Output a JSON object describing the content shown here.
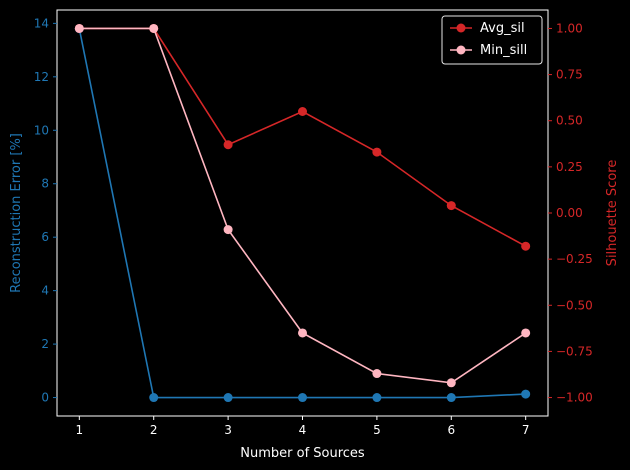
{
  "chart_data": {
    "type": "line",
    "x": [
      1,
      2,
      3,
      4,
      5,
      6,
      7
    ],
    "xlabel": "Number of Sources",
    "xticks": [
      "1",
      "2",
      "3",
      "4",
      "5",
      "6",
      "7"
    ],
    "xlim": [
      0.7,
      7.3
    ],
    "left_axis": {
      "label": "Reconstruction Error [%]",
      "color": "#1f77b4",
      "ylim": [
        -0.69,
        14.5
      ],
      "ticks": [
        0,
        2,
        4,
        6,
        8,
        10,
        12,
        14
      ]
    },
    "right_axis": {
      "label": "Silhouette Score",
      "color": "#d62728",
      "ylim": [
        -1.1,
        1.1
      ],
      "ticks": [
        -1.0,
        -0.75,
        -0.5,
        -0.25,
        0.0,
        0.25,
        0.5,
        0.75,
        1.0
      ]
    },
    "series": [
      {
        "axis": "left",
        "color": "#1f77b4",
        "values": [
          13.8,
          0.0,
          0.0,
          0.0,
          0.0,
          0.0,
          0.13
        ]
      },
      {
        "name": "Avg_sil",
        "axis": "right",
        "color": "#d62728",
        "values": [
          1.0,
          1.0,
          0.37,
          0.55,
          0.33,
          0.04,
          -0.18
        ]
      },
      {
        "name": "Min_sill",
        "axis": "right",
        "color": "#ffb6c1",
        "values": [
          1.0,
          1.0,
          -0.09,
          -0.65,
          -0.87,
          -0.92,
          -0.65
        ]
      }
    ],
    "legend_position": "top-right",
    "grid": false,
    "background": "#000000",
    "frame_color": "#ffffff"
  }
}
